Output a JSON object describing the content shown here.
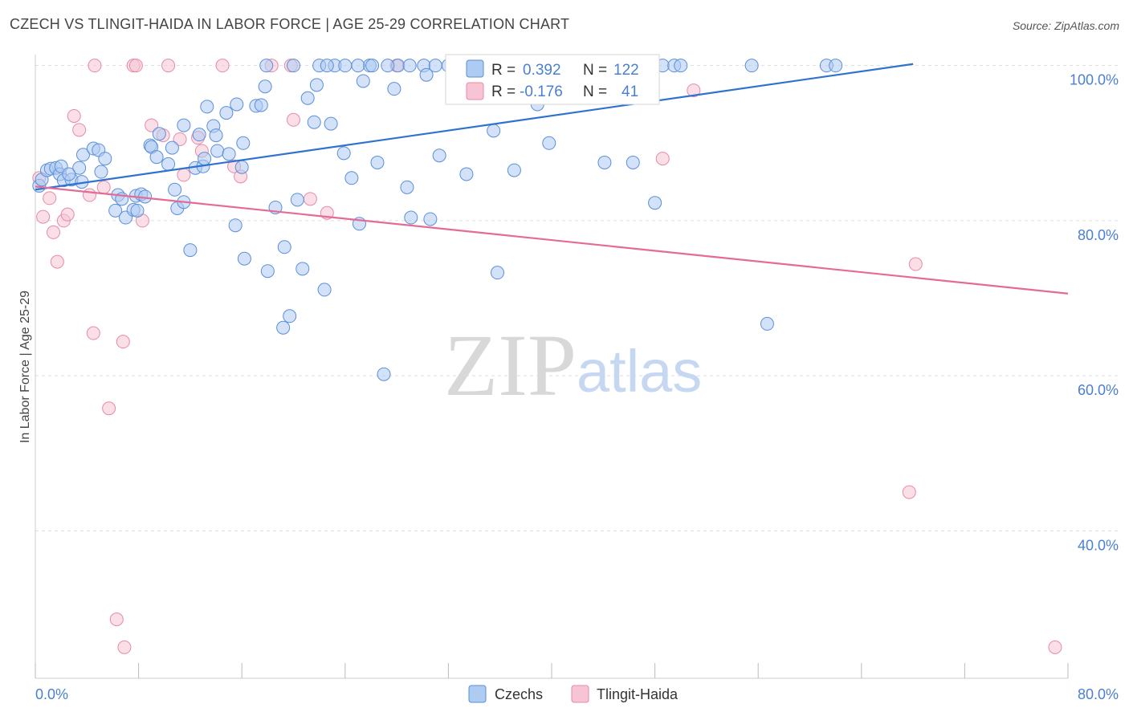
{
  "title": "CZECH VS TLINGIT-HAIDA IN LABOR FORCE | AGE 25-29 CORRELATION CHART",
  "source": "Source: ZipAtlas.com",
  "watermark": {
    "zip": "ZIP",
    "atlas": "atlas"
  },
  "colors": {
    "czech_fill": "#aecbf2",
    "czech_stroke": "#5b8fd9",
    "czech_line": "#2f72d0",
    "tlingit_fill": "#f6c4d3",
    "tlingit_stroke": "#e68aa8",
    "tlingit_line": "#e46b96",
    "tick_label": "#4a7fd4",
    "grid": "#dddddd"
  },
  "stats": {
    "row1": {
      "r_label": "R =",
      "r_value": "0.392",
      "n_label": "N =",
      "n_value": "122"
    },
    "row2": {
      "r_label": "R =",
      "r_value": "-0.176",
      "n_label": "N =",
      "n_value": "41"
    }
  },
  "chart_data": {
    "type": "scatter",
    "title": "CZECH VS TLINGIT-HAIDA IN LABOR FORCE | AGE 25-29 CORRELATION CHART",
    "xlabel": "",
    "ylabel": "In Labor Force | Age 25-29",
    "xlim": [
      0,
      80
    ],
    "ylim": [
      21,
      101
    ],
    "x_tick_labels": [
      {
        "value": 0,
        "label": "0.0%"
      },
      {
        "value": 80,
        "label": "80.0%"
      }
    ],
    "y_tick_labels": [
      {
        "value": 100,
        "label": "100.0%"
      },
      {
        "value": 80,
        "label": "80.0%"
      },
      {
        "value": 60,
        "label": "60.0%"
      },
      {
        "value": 40,
        "label": "40.0%"
      }
    ],
    "grid": true,
    "legend_position": "bottom-center",
    "series": [
      {
        "name": "Czechs",
        "r": 0.392,
        "n": 122,
        "trend": {
          "x": [
            0,
            68
          ],
          "y": [
            84.0,
            100.2
          ]
        },
        "points": [
          [
            0.3,
            84.5
          ],
          [
            0.5,
            85.3
          ],
          [
            0.9,
            86.5
          ],
          [
            1.2,
            86.7
          ],
          [
            1.6,
            86.8
          ],
          [
            1.9,
            86.0
          ],
          [
            2.2,
            85.2
          ],
          [
            2.8,
            85.3
          ],
          [
            3.6,
            85.0
          ],
          [
            2.0,
            87.0
          ],
          [
            3.4,
            86.8
          ],
          [
            5.1,
            86.3
          ],
          [
            3.7,
            88.5
          ],
          [
            4.5,
            89.3
          ],
          [
            4.9,
            89.1
          ],
          [
            5.4,
            88.0
          ],
          [
            2.6,
            86.0
          ],
          [
            6.4,
            83.3
          ],
          [
            6.7,
            82.8
          ],
          [
            7.8,
            83.2
          ],
          [
            8.2,
            83.4
          ],
          [
            8.5,
            83.1
          ],
          [
            6.2,
            81.3
          ],
          [
            7.0,
            80.4
          ],
          [
            7.6,
            81.4
          ],
          [
            7.9,
            81.3
          ],
          [
            8.9,
            89.7
          ],
          [
            9.0,
            89.5
          ],
          [
            9.6,
            91.2
          ],
          [
            9.4,
            88.2
          ],
          [
            10.3,
            87.3
          ],
          [
            10.6,
            89.4
          ],
          [
            11.5,
            92.3
          ],
          [
            12.7,
            91.1
          ],
          [
            10.8,
            84.0
          ],
          [
            11.0,
            81.6
          ],
          [
            11.5,
            82.4
          ],
          [
            12.4,
            86.8
          ],
          [
            13.0,
            87.0
          ],
          [
            13.1,
            88.0
          ],
          [
            14.1,
            89.0
          ],
          [
            13.3,
            94.7
          ],
          [
            13.8,
            92.2
          ],
          [
            14.0,
            91.0
          ],
          [
            14.8,
            93.9
          ],
          [
            15.0,
            88.6
          ],
          [
            15.6,
            95.0
          ],
          [
            16.1,
            90.0
          ],
          [
            16.0,
            86.9
          ],
          [
            12.0,
            76.2
          ],
          [
            15.5,
            79.4
          ],
          [
            16.2,
            75.1
          ],
          [
            17.1,
            94.8
          ],
          [
            17.5,
            94.9
          ],
          [
            17.8,
            97.3
          ],
          [
            18.0,
            73.5
          ],
          [
            18.6,
            81.7
          ],
          [
            19.3,
            76.6
          ],
          [
            19.7,
            67.7
          ],
          [
            19.2,
            66.2
          ],
          [
            20.3,
            82.7
          ],
          [
            20.7,
            73.8
          ],
          [
            21.1,
            95.8
          ],
          [
            21.6,
            92.7
          ],
          [
            21.8,
            97.5
          ],
          [
            20.0,
            100.0
          ],
          [
            22.0,
            100.0
          ],
          [
            22.4,
            71.1
          ],
          [
            22.9,
            92.5
          ],
          [
            23.2,
            100.0
          ],
          [
            24.0,
            100.0
          ],
          [
            23.9,
            88.7
          ],
          [
            24.5,
            85.5
          ],
          [
            25.1,
            79.6
          ],
          [
            25.4,
            98.0
          ],
          [
            25.9,
            100.0
          ],
          [
            26.1,
            100.0
          ],
          [
            26.5,
            87.5
          ],
          [
            27.0,
            60.2
          ],
          [
            27.8,
            97.0
          ],
          [
            28.1,
            100.0
          ],
          [
            29.0,
            100.0
          ],
          [
            28.8,
            84.3
          ],
          [
            29.1,
            80.4
          ],
          [
            30.1,
            100.0
          ],
          [
            30.3,
            98.8
          ],
          [
            30.6,
            80.2
          ],
          [
            31.0,
            100.0
          ],
          [
            31.3,
            88.4
          ],
          [
            32.0,
            100.0
          ],
          [
            32.6,
            100.0
          ],
          [
            33.4,
            86.0
          ],
          [
            34.3,
            100.0
          ],
          [
            35.5,
            91.6
          ],
          [
            35.8,
            73.3
          ],
          [
            36.3,
            100.0
          ],
          [
            37.1,
            86.5
          ],
          [
            38.0,
            100.0
          ],
          [
            38.9,
            95.0
          ],
          [
            39.8,
            90.0
          ],
          [
            40.2,
            100.0
          ],
          [
            41.1,
            100.0
          ],
          [
            42.9,
            100.0
          ],
          [
            44.1,
            87.5
          ],
          [
            44.6,
            100.0
          ],
          [
            46.3,
            87.5
          ],
          [
            47.5,
            100.0
          ],
          [
            48.0,
            82.3
          ],
          [
            48.6,
            100.0
          ],
          [
            49.5,
            100.0
          ],
          [
            55.5,
            100.0
          ],
          [
            56.7,
            66.7
          ],
          [
            61.3,
            100.0
          ],
          [
            62.0,
            100.0
          ],
          [
            46.5,
            100.0
          ],
          [
            43.5,
            100.0
          ],
          [
            38.5,
            100.0
          ],
          [
            33.0,
            100.0
          ],
          [
            27.3,
            100.0
          ],
          [
            22.6,
            100.0
          ],
          [
            17.9,
            100.0
          ],
          [
            36.7,
            100.0
          ],
          [
            50.0,
            100.0
          ],
          [
            25.0,
            100.0
          ],
          [
            42.5,
            100.0
          ]
        ]
      },
      {
        "name": "Tlingit-Haida",
        "r": -0.176,
        "n": 41,
        "trend": {
          "x": [
            0,
            80
          ],
          "y": [
            84.4,
            70.6
          ]
        },
        "points": [
          [
            0.3,
            85.5
          ],
          [
            0.6,
            80.5
          ],
          [
            1.1,
            82.9
          ],
          [
            1.4,
            78.5
          ],
          [
            1.7,
            74.7
          ],
          [
            2.2,
            80.0
          ],
          [
            2.5,
            80.8
          ],
          [
            3.0,
            93.5
          ],
          [
            3.4,
            91.7
          ],
          [
            4.2,
            83.3
          ],
          [
            4.5,
            65.5
          ],
          [
            5.3,
            84.3
          ],
          [
            5.7,
            55.8
          ],
          [
            6.3,
            28.6
          ],
          [
            6.8,
            64.4
          ],
          [
            6.9,
            25.0
          ],
          [
            7.6,
            100.0
          ],
          [
            7.8,
            100.0
          ],
          [
            8.3,
            80.0
          ],
          [
            9.0,
            92.3
          ],
          [
            9.9,
            91.0
          ],
          [
            10.3,
            100.0
          ],
          [
            11.2,
            90.5
          ],
          [
            11.5,
            85.9
          ],
          [
            12.6,
            90.7
          ],
          [
            12.9,
            89.0
          ],
          [
            15.4,
            87.0
          ],
          [
            15.9,
            85.7
          ],
          [
            18.3,
            100.0
          ],
          [
            19.8,
            100.0
          ],
          [
            20.0,
            93.0
          ],
          [
            21.3,
            82.8
          ],
          [
            22.6,
            81.0
          ],
          [
            28.0,
            100.0
          ],
          [
            48.6,
            88.0
          ],
          [
            51.0,
            96.8
          ],
          [
            67.7,
            45.0
          ],
          [
            68.2,
            74.4
          ],
          [
            79.0,
            25.0
          ],
          [
            4.6,
            100.0
          ],
          [
            14.5,
            100.0
          ]
        ]
      }
    ]
  }
}
